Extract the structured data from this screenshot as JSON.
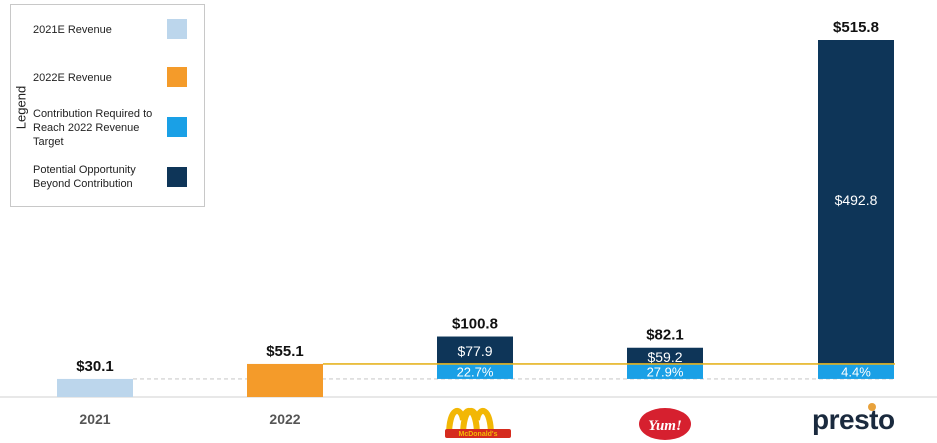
{
  "legend": {
    "title": "Legend",
    "items": [
      {
        "label": "2021E Revenue",
        "color": "#bcd6ec"
      },
      {
        "label": "2022E Revenue",
        "color": "#f49b2a"
      },
      {
        "label": "Contribution Required to Reach 2022 Revenue Target",
        "color": "#1aa0e6"
      },
      {
        "label": "Potential Opportunity Beyond Contribution",
        "color": "#0e3558"
      }
    ]
  },
  "logos": {
    "mcdonalds": "McDonald's",
    "yum": "Yum!",
    "presto": "presto"
  },
  "chart_data": {
    "type": "bar",
    "categories": [
      "2021",
      "2022",
      "McDonald's",
      "Yum!",
      "presto"
    ],
    "totals_labels": [
      "$30.1",
      "$55.1",
      "$100.8",
      "$82.1",
      "$515.8"
    ],
    "totals": [
      30.1,
      55.1,
      100.8,
      82.1,
      515.8
    ],
    "segments": [
      {
        "category": "2021",
        "kind": "2021E Revenue",
        "value": 30.1,
        "color": "#bcd6ec"
      },
      {
        "category": "2022",
        "kind": "2022E Revenue",
        "value": 55.1,
        "color": "#f49b2a"
      },
      {
        "category": "McDonald's",
        "kind": "Contribution Required to Reach 2022 Revenue Target",
        "label": "22.7%",
        "color": "#1aa0e6"
      },
      {
        "category": "McDonald's",
        "kind": "Potential Opportunity Beyond Contribution",
        "value": 77.9,
        "label": "$77.9",
        "color": "#0e3558"
      },
      {
        "category": "Yum!",
        "kind": "Contribution Required to Reach 2022 Revenue Target",
        "label": "27.9%",
        "color": "#1aa0e6"
      },
      {
        "category": "Yum!",
        "kind": "Potential Opportunity Beyond Contribution",
        "value": 59.2,
        "label": "$59.2",
        "color": "#0e3558"
      },
      {
        "category": "presto",
        "kind": "Contribution Required to Reach 2022 Revenue Target",
        "label": "4.4%",
        "color": "#1aa0e6"
      },
      {
        "category": "presto",
        "kind": "Potential Opportunity Beyond Contribution",
        "value": 492.8,
        "label": "$492.8",
        "color": "#0e3558"
      }
    ],
    "reference_lines": [
      {
        "name": "2021E level",
        "value": 30.1,
        "style": "dashed",
        "color": "#cccccc"
      },
      {
        "name": "2022E target",
        "value": 55.1,
        "style": "solid",
        "color": "#e6b422"
      }
    ]
  }
}
